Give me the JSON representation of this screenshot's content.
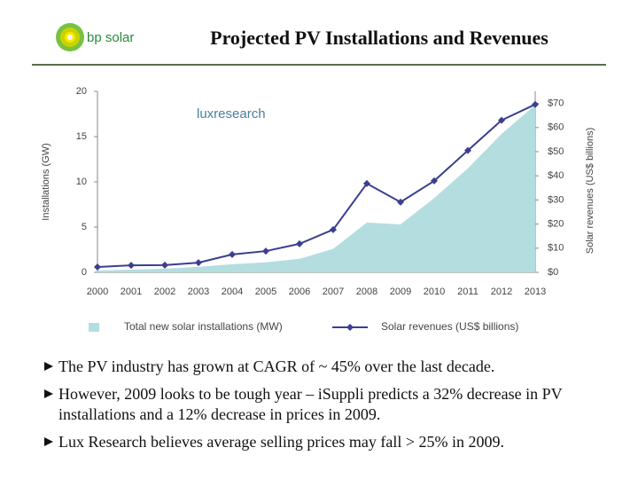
{
  "header": {
    "logo_text": "bp solar"
  },
  "chart_data": {
    "type": "line",
    "title": "Projected PV Installations and Revenues",
    "annotation": "luxresearch",
    "ylabel": "Installations (GW)",
    "y2label": "Solar revenues (US$ billions)",
    "categories": [
      "2000",
      "2001",
      "2002",
      "2003",
      "2004",
      "2005",
      "2006",
      "2007",
      "2008",
      "2009",
      "2010",
      "2011",
      "2012",
      "2013"
    ],
    "series": [
      {
        "name": "Total new solar installations (MW)",
        "kind": "area",
        "color": "#b4dde0",
        "values": [
          0.2,
          0.3,
          0.4,
          0.6,
          0.9,
          1.1,
          1.5,
          2.6,
          5.5,
          5.3,
          8.2,
          11.5,
          15.3,
          18.5
        ]
      },
      {
        "name": "Solar revenues (US$ billions)",
        "kind": "line",
        "axis": "y2",
        "color": "#3b3f8f",
        "values": [
          2.2,
          2.9,
          3.0,
          4.0,
          7.4,
          8.8,
          11.8,
          17.7,
          36.8,
          29.1,
          37.9,
          50.5,
          63.0,
          69.6
        ]
      }
    ],
    "ylim": [
      0,
      20
    ],
    "yticks": [
      0,
      5,
      10,
      15,
      20
    ],
    "y2lim": [
      0,
      75
    ],
    "y2ticks": [
      {
        "value": 0,
        "label": "$0"
      },
      {
        "value": 10,
        "label": "$10"
      },
      {
        "value": 20,
        "label": "$20"
      },
      {
        "value": 30,
        "label": "$30"
      },
      {
        "value": 40,
        "label": "$40"
      },
      {
        "value": 50,
        "label": "$50"
      },
      {
        "value": 60,
        "label": "$60"
      },
      {
        "value": 70,
        "label": "$70"
      }
    ],
    "legend": "bottom"
  },
  "bullets": [
    "The PV industry has grown at CAGR of ~ 45% over the last decade.",
    "However, 2009 looks to be tough year – iSuppli predicts a 32% decrease in PV installations and a 12% decrease in prices in 2009.",
    "Lux Research believes average selling prices may fall > 25% in 2009."
  ]
}
